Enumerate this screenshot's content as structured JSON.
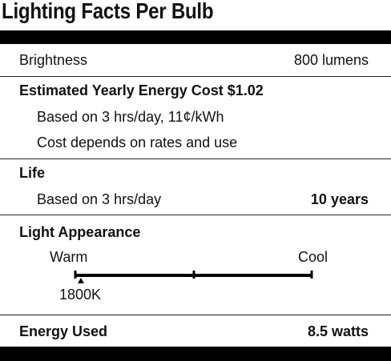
{
  "title": "Lighting Facts Per Bulb",
  "brightness": {
    "label": "Brightness",
    "value": "800 lumens"
  },
  "energy_cost": {
    "label": "Estimated Yearly Energy Cost $1.02",
    "notes": [
      "Based on 3 hrs/day, 11¢/kWh",
      "Cost depends on rates and use"
    ]
  },
  "life": {
    "label": "Life",
    "note": "Based on 3 hrs/day",
    "value": "10 years"
  },
  "light_appearance": {
    "label": "Light Appearance",
    "scale_left": "Warm",
    "scale_right": "Cool",
    "value": "1800K"
  },
  "energy_used": {
    "label": "Energy Used",
    "value": "8.5 watts"
  }
}
